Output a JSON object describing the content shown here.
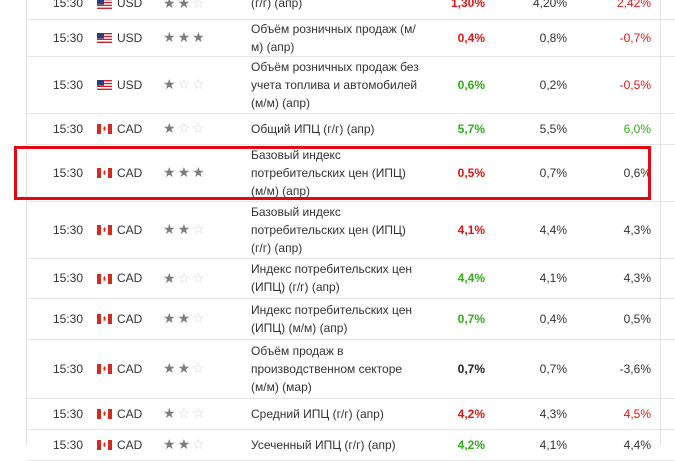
{
  "rows": [
    {
      "time": "15:30",
      "currency": "USD",
      "flag": "us",
      "stars": 2,
      "event": "(г/г) (апр)",
      "actual": "1,30%",
      "actual_color": "red",
      "forecast": "4,20%",
      "previous": "2,42%",
      "previous_color": "red"
    },
    {
      "time": "15:30",
      "currency": "USD",
      "flag": "us",
      "stars": 3,
      "event": "Объём розничных продаж (м/м) (апр)",
      "actual": "0,4%",
      "actual_color": "red",
      "forecast": "0,8%",
      "previous": "-0,7%",
      "previous_color": "red"
    },
    {
      "time": "15:30",
      "currency": "USD",
      "flag": "us",
      "stars": 1,
      "event": "Объём розничных продаж без учета топлива и автомобилей (м/м) (апр)",
      "actual": "0,6%",
      "actual_color": "green",
      "forecast": "0,2%",
      "previous": "-0,5%",
      "previous_color": "red"
    },
    {
      "time": "15:30",
      "currency": "CAD",
      "flag": "ca",
      "stars": 1,
      "event": "Общий ИПЦ (г/г) (апр)",
      "actual": "5,7%",
      "actual_color": "green",
      "forecast": "5,5%",
      "previous": "6,0%",
      "previous_color": "green"
    },
    {
      "time": "15:30",
      "currency": "CAD",
      "flag": "ca",
      "stars": 3,
      "event": "Базовый индекс потребительских цен (ИПЦ) (м/м) (апр)",
      "actual": "0,5%",
      "actual_color": "red",
      "forecast": "0,7%",
      "previous": "0,6%",
      "previous_color": "plain"
    },
    {
      "time": "15:30",
      "currency": "CAD",
      "flag": "ca",
      "stars": 2,
      "event": "Базовый индекс потребительских цен (ИПЦ) (г/г) (апр)",
      "actual": "4,1%",
      "actual_color": "red",
      "forecast": "4,4%",
      "previous": "4,3%",
      "previous_color": "plain"
    },
    {
      "time": "15:30",
      "currency": "CAD",
      "flag": "ca",
      "stars": 1,
      "event": "Индекс потребительских цен (ИПЦ) (г/г) (апр)",
      "actual": "4,4%",
      "actual_color": "green",
      "forecast": "4,1%",
      "previous": "4,3%",
      "previous_color": "plain"
    },
    {
      "time": "15:30",
      "currency": "CAD",
      "flag": "ca",
      "stars": 2,
      "event": "Индекс потребительских цен (ИПЦ) (м/м) (апр)",
      "actual": "0,7%",
      "actual_color": "green",
      "forecast": "0,4%",
      "previous": "0,5%",
      "previous_color": "plain"
    },
    {
      "time": "15:30",
      "currency": "CAD",
      "flag": "ca",
      "stars": 2,
      "event": "Объём продаж в производственном секторе (м/м) (мар)",
      "actual": "0,7%",
      "actual_color": "black",
      "forecast": "0,7%",
      "previous": "-3,6%",
      "previous_color": "plain"
    },
    {
      "time": "15:30",
      "currency": "CAD",
      "flag": "ca",
      "stars": 1,
      "event": "Средний ИПЦ (г/г) (апр)",
      "actual": "4,2%",
      "actual_color": "red",
      "forecast": "4,3%",
      "previous": "4,5%",
      "previous_color": "red"
    },
    {
      "time": "15:30",
      "currency": "CAD",
      "flag": "ca",
      "stars": 2,
      "event": "Усеченный ИПЦ (г/г) (апр)",
      "actual": "4,2%",
      "actual_color": "green",
      "forecast": "4,1%",
      "previous": "4,4%",
      "previous_color": "plain"
    }
  ],
  "highlighted_row": 4,
  "colors": {
    "red": "#e01414",
    "green": "#2fae17",
    "highlight": "#e30613"
  }
}
